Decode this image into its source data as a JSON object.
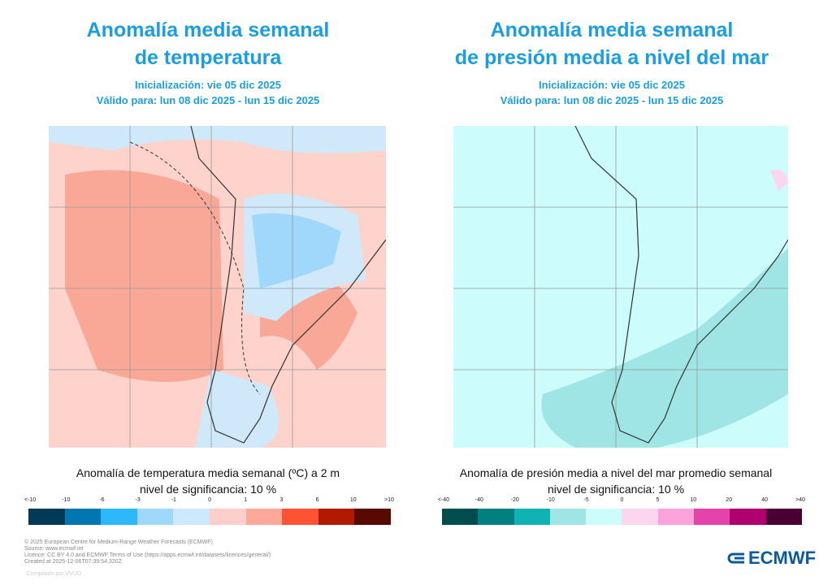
{
  "left": {
    "title_line1": "Anomalía media semanal",
    "title_line2": "de temperatura",
    "init": "Inicialización: vie 05 dic 2025",
    "valid": "Válido para: lun 08 dic 2025 - lun 15 dic 2025",
    "caption": "Anomalía de temperatura media semanal (ºC) a 2 m",
    "significance": "nivel de significancia: 10 %",
    "ticks": [
      "<-10",
      "-10",
      "-6",
      "-3",
      "-1",
      "0",
      "1",
      "3",
      "6",
      "10",
      ">10"
    ],
    "colors": [
      "#003a57",
      "#0077b0",
      "#2db8fb",
      "#9ed9fb",
      "#cbeafb",
      "#fecfca",
      "#fda89a",
      "#fe5333",
      "#b11a00",
      "#580a00"
    ]
  },
  "right": {
    "title_line1": "Anomalía media semanal",
    "title_line2": "de presión media a nivel del mar",
    "init": "Inicialización: vie 05 dic 2025",
    "valid": "Válido para: lun 08 dic 2025 - lun 15 dic 2025",
    "caption": "Anomalía de presión media a nivel del mar promedio semanal",
    "significance": "nivel de significancia: 10 %",
    "ticks": [
      "<-40",
      "-40",
      "-20",
      "-10",
      "-5",
      "0",
      "5",
      "10",
      "20",
      "40",
      ">40"
    ],
    "colors": [
      "#004d4d",
      "#008080",
      "#10b3b3",
      "#a0e5e5",
      "#ccfcfc",
      "#fcd5ee",
      "#fca3dc",
      "#e443ac",
      "#b0006f",
      "#4a0030"
    ]
  },
  "footer": {
    "copyright": "© 2025 European Centre for Medium-Range Weather Forecasts (ECMWF)",
    "source": "Source: www.ecmwf.int",
    "licence": "Licence: CC BY 4.0 and ECMWF Terms of Use (https://apps.ecmwf.int/datasets/licences/general/)",
    "created": "Created at 2025-12-06T07:39:54.320Z",
    "compiled": "Compilado por VVUG"
  },
  "logo": {
    "text": "ECMWF"
  }
}
